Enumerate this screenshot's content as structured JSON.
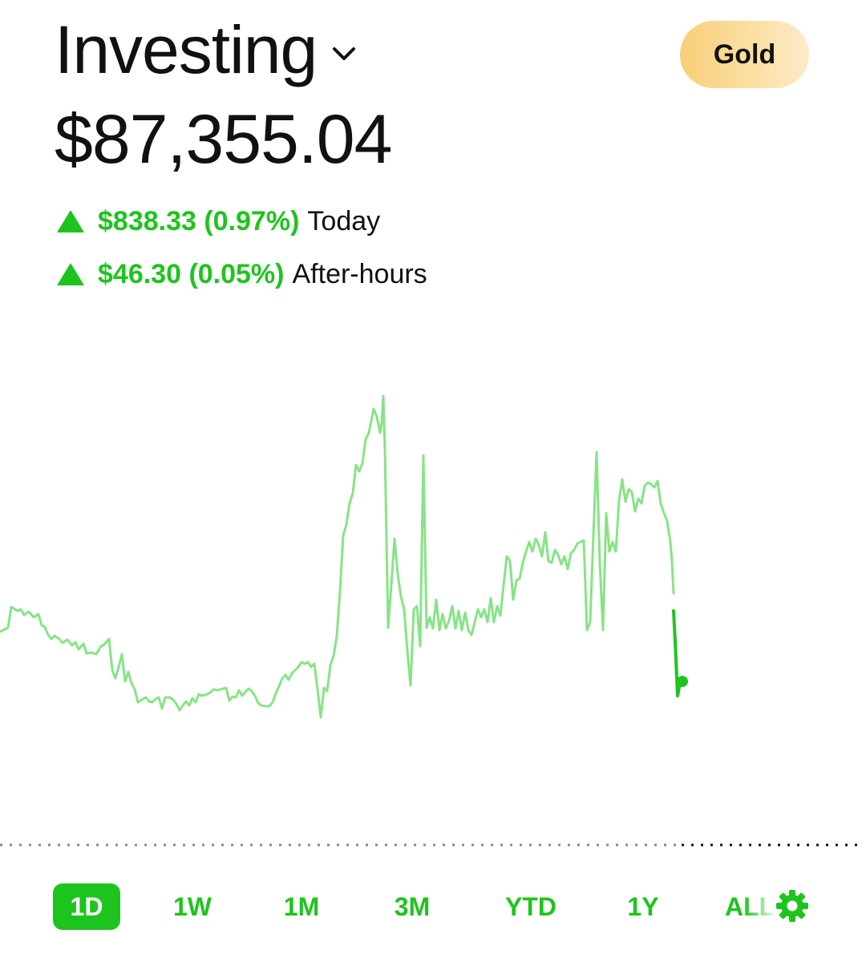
{
  "header": {
    "title": "Investing",
    "gold_label": "Gold"
  },
  "portfolio": {
    "balance": "$87,355.04",
    "today_change": "$838.33 (0.97%)",
    "today_label": "Today",
    "after_hours_change": "$46.30 (0.05%)",
    "after_hours_label": "After-hours"
  },
  "ranges": {
    "items": [
      "1D",
      "1W",
      "1M",
      "3M",
      "YTD",
      "1Y",
      "ALL"
    ],
    "selected": "1D"
  },
  "icons": {
    "title_menu": "chevron-down-icon",
    "up": "triangle-up-icon",
    "settings": "gear-icon"
  },
  "colors": {
    "accent_green": "#1ec41e",
    "chart_line_light": "#86e486",
    "gold_start": "#f8cf78",
    "gold_end": "#fdebc9"
  },
  "chart_data": {
    "type": "line",
    "title": "",
    "xlabel": "",
    "ylabel": "",
    "series_light": [
      [
        0,
        788
      ],
      [
        10,
        783
      ],
      [
        14,
        757
      ],
      [
        22,
        762
      ],
      [
        26,
        760
      ],
      [
        30,
        767
      ],
      [
        36,
        763
      ],
      [
        42,
        770
      ],
      [
        48,
        766
      ],
      [
        52,
        780
      ],
      [
        56,
        782
      ],
      [
        60,
        792
      ],
      [
        64,
        797
      ],
      [
        68,
        793
      ],
      [
        74,
        797
      ],
      [
        78,
        802
      ],
      [
        84,
        798
      ],
      [
        90,
        805
      ],
      [
        94,
        801
      ],
      [
        98,
        810
      ],
      [
        104,
        803
      ],
      [
        108,
        815
      ],
      [
        114,
        814
      ],
      [
        120,
        816
      ],
      [
        126,
        806
      ],
      [
        130,
        804
      ],
      [
        136,
        797
      ],
      [
        140,
        836
      ],
      [
        144,
        846
      ],
      [
        148,
        832
      ],
      [
        152,
        816
      ],
      [
        156,
        850
      ],
      [
        160,
        838
      ],
      [
        164,
        852
      ],
      [
        168,
        860
      ],
      [
        172,
        876
      ],
      [
        178,
        872
      ],
      [
        182,
        870
      ],
      [
        186,
        875
      ],
      [
        190,
        876
      ],
      [
        194,
        872
      ],
      [
        198,
        870
      ],
      [
        202,
        884
      ],
      [
        206,
        870
      ],
      [
        212,
        870
      ],
      [
        216,
        873
      ],
      [
        220,
        878
      ],
      [
        224,
        886
      ],
      [
        228,
        880
      ],
      [
        232,
        875
      ],
      [
        236,
        880
      ],
      [
        240,
        871
      ],
      [
        244,
        876
      ],
      [
        248,
        866
      ],
      [
        252,
        868
      ],
      [
        258,
        866
      ],
      [
        262,
        864
      ],
      [
        266,
        860
      ],
      [
        272,
        861
      ],
      [
        278,
        859
      ],
      [
        282,
        858
      ],
      [
        286,
        874
      ],
      [
        290,
        869
      ],
      [
        294,
        870
      ],
      [
        298,
        861
      ],
      [
        302,
        868
      ],
      [
        306,
        863
      ],
      [
        310,
        859
      ],
      [
        314,
        862
      ],
      [
        318,
        868
      ],
      [
        322,
        877
      ],
      [
        326,
        880
      ],
      [
        332,
        881
      ],
      [
        336,
        881
      ],
      [
        340,
        876
      ],
      [
        344,
        865
      ],
      [
        348,
        856
      ],
      [
        352,
        846
      ],
      [
        356,
        842
      ],
      [
        360,
        848
      ],
      [
        364,
        840
      ],
      [
        368,
        836
      ],
      [
        372,
        832
      ],
      [
        376,
        826
      ],
      [
        380,
        828
      ],
      [
        384,
        826
      ],
      [
        388,
        832
      ],
      [
        392,
        828
      ],
      [
        396,
        860
      ],
      [
        400,
        895
      ],
      [
        404,
        858
      ],
      [
        408,
        862
      ],
      [
        412,
        830
      ],
      [
        416,
        818
      ],
      [
        420,
        794
      ],
      [
        424,
        738
      ],
      [
        428,
        668
      ],
      [
        432,
        654
      ],
      [
        436,
        628
      ],
      [
        440,
        615
      ],
      [
        444,
        580
      ],
      [
        448,
        588
      ],
      [
        452,
        578
      ],
      [
        456,
        548
      ],
      [
        460,
        540
      ],
      [
        464,
        520
      ],
      [
        466,
        510
      ],
      [
        470,
        520
      ],
      [
        474,
        540
      ],
      [
        476,
        528
      ],
      [
        478,
        494
      ],
      [
        480,
        560
      ],
      [
        484,
        783
      ],
      [
        488,
        730
      ],
      [
        492,
        672
      ],
      [
        496,
        716
      ],
      [
        500,
        744
      ],
      [
        504,
        760
      ],
      [
        508,
        812
      ],
      [
        512,
        855
      ],
      [
        516,
        760
      ],
      [
        520,
        756
      ],
      [
        524,
        806
      ],
      [
        528,
        568
      ],
      [
        532,
        783
      ],
      [
        536,
        770
      ],
      [
        540,
        784
      ],
      [
        544,
        748
      ],
      [
        548,
        786
      ],
      [
        552,
        766
      ],
      [
        556,
        784
      ],
      [
        560,
        774
      ],
      [
        564,
        756
      ],
      [
        568,
        784
      ],
      [
        572,
        762
      ],
      [
        576,
        786
      ],
      [
        580,
        764
      ],
      [
        584,
        786
      ],
      [
        588,
        792
      ],
      [
        592,
        776
      ],
      [
        596,
        760
      ],
      [
        600,
        770
      ],
      [
        604,
        760
      ],
      [
        608,
        776
      ],
      [
        612,
        746
      ],
      [
        616,
        776
      ],
      [
        620,
        756
      ],
      [
        624,
        768
      ],
      [
        628,
        730
      ],
      [
        632,
        694
      ],
      [
        636,
        700
      ],
      [
        640,
        748
      ],
      [
        644,
        724
      ],
      [
        648,
        722
      ],
      [
        652,
        702
      ],
      [
        656,
        688
      ],
      [
        660,
        676
      ],
      [
        664,
        688
      ],
      [
        668,
        672
      ],
      [
        672,
        680
      ],
      [
        676,
        694
      ],
      [
        680,
        664
      ],
      [
        684,
        700
      ],
      [
        688,
        702
      ],
      [
        692,
        686
      ],
      [
        696,
        692
      ],
      [
        700,
        704
      ],
      [
        704,
        694
      ],
      [
        708,
        710
      ],
      [
        712,
        690
      ],
      [
        716,
        686
      ],
      [
        720,
        678
      ],
      [
        724,
        676
      ],
      [
        728,
        674
      ],
      [
        732,
        786
      ],
      [
        736,
        776
      ],
      [
        740,
        668
      ],
      [
        744,
        564
      ],
      [
        748,
        702
      ],
      [
        752,
        786
      ],
      [
        756,
        640
      ],
      [
        760,
        688
      ],
      [
        764,
        676
      ],
      [
        768,
        688
      ],
      [
        772,
        624
      ],
      [
        776,
        598
      ],
      [
        780,
        626
      ],
      [
        784,
        610
      ],
      [
        788,
        614
      ],
      [
        792,
        638
      ],
      [
        796,
        622
      ],
      [
        800,
        628
      ],
      [
        804,
        606
      ],
      [
        808,
        602
      ],
      [
        812,
        604
      ],
      [
        816,
        608
      ],
      [
        820,
        600
      ],
      [
        824,
        628
      ],
      [
        828,
        640
      ],
      [
        832,
        650
      ],
      [
        836,
        676
      ],
      [
        838,
        700
      ],
      [
        840,
        740
      ]
    ],
    "series_dark": [
      [
        840,
        762
      ],
      [
        842,
        800
      ],
      [
        845,
        868
      ],
      [
        848,
        852
      ],
      [
        851,
        850
      ]
    ],
    "end_point": [
      851,
      850
    ],
    "grid": "off",
    "legend": "none"
  }
}
